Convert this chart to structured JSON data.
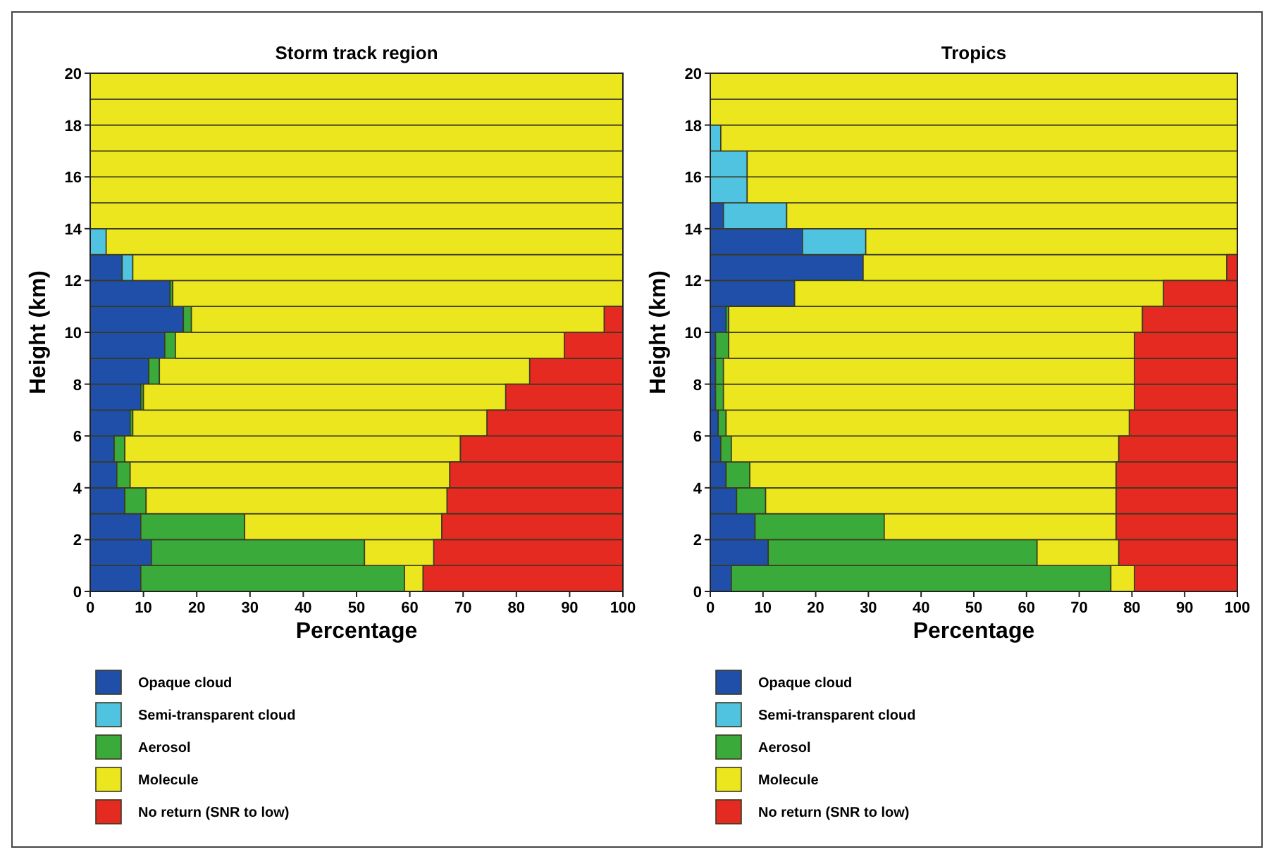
{
  "chart_data": [
    {
      "type": "bar",
      "orientation": "horizontal",
      "stacked": true,
      "title": "Storm track region",
      "xlabel": "Percentage",
      "ylabel": "Height (km)",
      "x": [
        0.5,
        1.5,
        2.5,
        3.5,
        4.5,
        5.5,
        6.5,
        7.5,
        8.5,
        9.5,
        10.5,
        11.5,
        12.5,
        13.5,
        14.5,
        15.5,
        16.5,
        17.5,
        18.5,
        19.5
      ],
      "xlim": [
        0,
        100
      ],
      "xticks": [
        0,
        10,
        20,
        30,
        40,
        50,
        60,
        70,
        80,
        90,
        100
      ],
      "ylim": [
        0,
        20
      ],
      "yticks": [
        0,
        2,
        4,
        6,
        8,
        10,
        12,
        14,
        16,
        18,
        20
      ],
      "legend": "bottom",
      "series": [
        {
          "name": "Opaque cloud",
          "color": "#1f4fa8",
          "values": [
            9.5,
            11.5,
            9.5,
            6.5,
            5,
            4.5,
            7.5,
            9.5,
            11,
            14,
            17.5,
            15,
            6,
            0,
            0,
            0,
            0,
            0,
            0,
            0
          ]
        },
        {
          "name": "Semi-transparent cloud",
          "color": "#4fc3e0",
          "values": [
            0,
            0,
            0,
            0,
            0,
            0,
            0,
            0,
            0,
            0,
            0,
            0,
            2,
            3,
            0,
            0,
            0,
            0,
            0,
            0
          ]
        },
        {
          "name": "Aerosol",
          "color": "#3aaa3a",
          "values": [
            49.5,
            40,
            19.5,
            4,
            2.5,
            2,
            0.5,
            0.5,
            2,
            2,
            1.5,
            0.5,
            0,
            0,
            0,
            0,
            0,
            0,
            0,
            0
          ]
        },
        {
          "name": "Molecule",
          "color": "#ece61e",
          "values": [
            3.5,
            13,
            37,
            56.5,
            60,
            63,
            66.5,
            68,
            69.5,
            73,
            77.5,
            84.5,
            92,
            97,
            100,
            100,
            100,
            100,
            100,
            100
          ]
        },
        {
          "name": "No return (SNR to low)",
          "color": "#e52a22",
          "values": [
            37.5,
            35.5,
            34,
            33,
            32.5,
            30.5,
            25.5,
            22,
            17.5,
            11,
            3.5,
            0,
            0,
            0,
            0,
            0,
            0,
            0,
            0,
            0
          ]
        }
      ]
    },
    {
      "type": "bar",
      "orientation": "horizontal",
      "stacked": true,
      "title": "Tropics",
      "xlabel": "Percentage",
      "ylabel": "Height (km)",
      "x": [
        0.5,
        1.5,
        2.5,
        3.5,
        4.5,
        5.5,
        6.5,
        7.5,
        8.5,
        9.5,
        10.5,
        11.5,
        12.5,
        13.5,
        14.5,
        15.5,
        16.5,
        17.5,
        18.5,
        19.5
      ],
      "xlim": [
        0,
        100
      ],
      "xticks": [
        0,
        10,
        20,
        30,
        40,
        50,
        60,
        70,
        80,
        90,
        100
      ],
      "ylim": [
        0,
        20
      ],
      "yticks": [
        0,
        2,
        4,
        6,
        8,
        10,
        12,
        14,
        16,
        18,
        20
      ],
      "legend": "bottom",
      "series": [
        {
          "name": "Opaque cloud",
          "color": "#1f4fa8",
          "values": [
            4,
            11,
            8.5,
            5,
            3,
            2,
            1.5,
            1,
            1,
            1,
            3,
            16,
            29,
            17.5,
            2.5,
            0,
            0,
            0,
            0,
            0
          ]
        },
        {
          "name": "Semi-transparent cloud",
          "color": "#4fc3e0",
          "values": [
            0,
            0,
            0,
            0,
            0,
            0,
            0,
            0,
            0,
            0,
            0,
            0,
            0,
            12,
            12,
            7,
            7,
            2,
            0,
            0
          ]
        },
        {
          "name": "Aerosol",
          "color": "#3aaa3a",
          "values": [
            72,
            51,
            24.5,
            5.5,
            4.5,
            2,
            1.5,
            1.5,
            1.5,
            2.5,
            0.5,
            0,
            0,
            0,
            0,
            0,
            0,
            0,
            0,
            0
          ]
        },
        {
          "name": "Molecule",
          "color": "#ece61e",
          "values": [
            4.5,
            15.5,
            44,
            66.5,
            69.5,
            73.5,
            76.5,
            78,
            78,
            77,
            78.5,
            70,
            69,
            70.5,
            85.5,
            93,
            93,
            98,
            100,
            100
          ]
        },
        {
          "name": "No return (SNR to low)",
          "color": "#e52a22",
          "values": [
            19.5,
            22.5,
            23,
            23,
            23,
            22.5,
            20.5,
            19.5,
            19.5,
            19.5,
            18,
            14,
            2,
            0,
            0,
            0,
            0,
            0,
            0,
            0
          ]
        }
      ]
    }
  ]
}
